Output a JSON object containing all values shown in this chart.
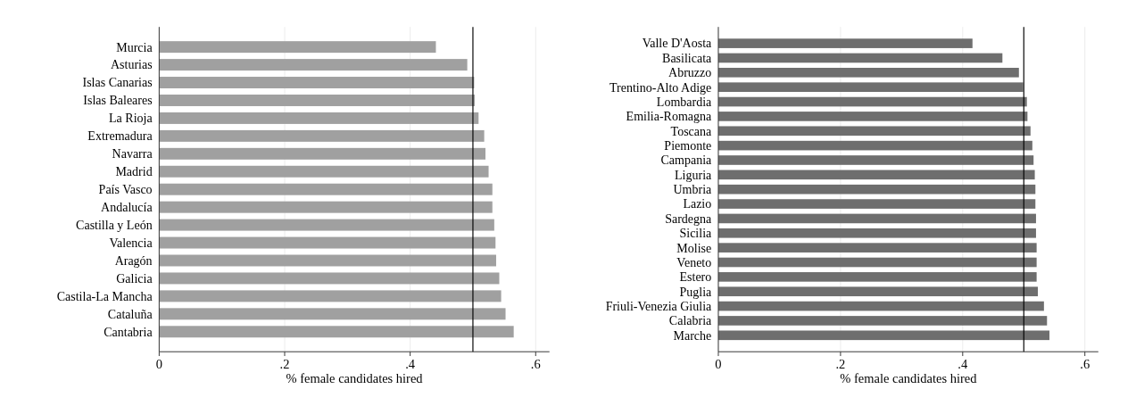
{
  "chart_data": [
    {
      "type": "bar",
      "orientation": "horizontal",
      "categories": [
        "Murcia",
        "Asturias",
        "Islas Canarias",
        "Islas Baleares",
        "La Rioja",
        "Extremadura",
        "Navarra",
        "Madrid",
        "País Vasco",
        "Andalucía",
        "Castilla y León",
        "Valencia",
        "Aragón",
        "Galicia",
        "Castila-La Mancha",
        "Cataluña",
        "Cantabria"
      ],
      "values": [
        0.441,
        0.491,
        0.502,
        0.503,
        0.509,
        0.518,
        0.52,
        0.525,
        0.531,
        0.531,
        0.534,
        0.536,
        0.537,
        0.542,
        0.545,
        0.552,
        0.565
      ],
      "color": "#a0a0a0",
      "xlabel": "% female candidates hired",
      "xlim": [
        0,
        0.622
      ],
      "xticks": [
        0,
        {
          "value": 0.2,
          "label": ".2"
        },
        {
          "value": 0.4,
          "label": ".4"
        },
        {
          "value": 0.6,
          "label": ".6"
        }
      ],
      "grid": "x",
      "ref_lines": [
        {
          "axis": "x",
          "value": 0.5,
          "color": "#000000"
        }
      ]
    },
    {
      "type": "bar",
      "orientation": "horizontal",
      "categories": [
        "Valle D'Aosta",
        "Basilicata",
        "Abruzzo",
        "Trentino-Alto Adige",
        "Lombardia",
        "Emilia-Romagna",
        "Toscana",
        "Piemonte",
        "Campania",
        "Liguria",
        "Umbria",
        "Lazio",
        "Sardegna",
        "Sicilia",
        "Molise",
        "Veneto",
        "Estero",
        "Puglia",
        "Friuli-Venezia Giulia",
        "Calabria",
        "Marche"
      ],
      "values": [
        0.416,
        0.465,
        0.492,
        0.499,
        0.505,
        0.506,
        0.511,
        0.514,
        0.516,
        0.518,
        0.519,
        0.519,
        0.52,
        0.52,
        0.521,
        0.521,
        0.521,
        0.523,
        0.533,
        0.538,
        0.542
      ],
      "color": "#6e6e6e",
      "xlabel": "% female candidates hired",
      "xlim": [
        0,
        0.622
      ],
      "xticks": [
        0,
        {
          "value": 0.2,
          "label": ".2"
        },
        {
          "value": 0.4,
          "label": ".4"
        },
        {
          "value": 0.6,
          "label": ".6"
        }
      ],
      "grid": "x",
      "ref_lines": [
        {
          "axis": "x",
          "value": 0.5,
          "color": "#000000"
        }
      ]
    }
  ]
}
